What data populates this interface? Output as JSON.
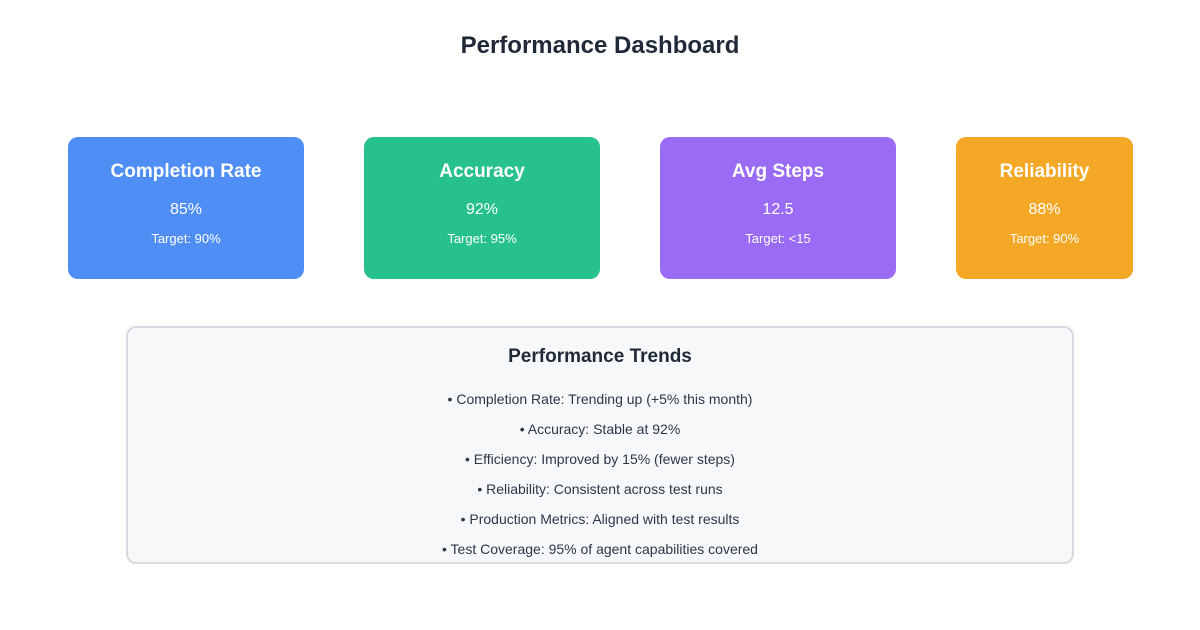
{
  "title": "Performance Dashboard",
  "cards": [
    {
      "id": "completion",
      "title": "Completion Rate",
      "value": "85%",
      "target": "Target: 90%",
      "color": "#4f8ef5"
    },
    {
      "id": "accuracy",
      "title": "Accuracy",
      "value": "92%",
      "target": "Target: 95%",
      "color": "#27c18e"
    },
    {
      "id": "avgsteps",
      "title": "Avg Steps",
      "value": "12.5",
      "target": "Target: <15",
      "color": "#9a6bf4"
    },
    {
      "id": "reliability",
      "title": "Reliability",
      "value": "88%",
      "target": "Target: 90%",
      "color": "#f5a826"
    }
  ],
  "trends": {
    "title": "Performance Trends",
    "items": [
      "• Completion Rate: Trending up (+5% this month)",
      "• Accuracy: Stable at 92%",
      "• Efficiency: Improved by 15% (fewer steps)",
      "• Reliability: Consistent across test runs",
      "• Production Metrics: Aligned with test results",
      "• Test Coverage: 95% of agent capabilities covered"
    ]
  }
}
